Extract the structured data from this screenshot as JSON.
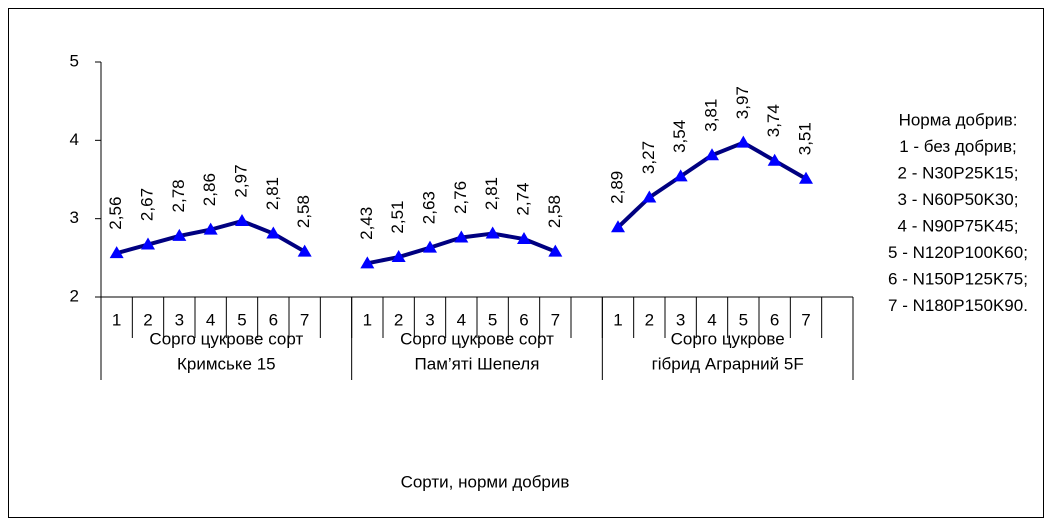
{
  "chart_data": {
    "type": "line",
    "x_title": "Сорти, норми добрив",
    "categories": [
      "1",
      "2",
      "3",
      "4",
      "5",
      "6",
      "7",
      null,
      "1",
      "2",
      "3",
      "4",
      "5",
      "6",
      "7",
      null,
      "1",
      "2",
      "3",
      "4",
      "5",
      "6",
      "7",
      null
    ],
    "groups": [
      [
        "Сорго цукрове сорт",
        "Кримське 15"
      ],
      [
        "Сорго цукрове сорт",
        "Пам’яті Шепеля"
      ],
      [
        "Сорго цукрове",
        "гібрид Аграрний 5F"
      ]
    ],
    "series": [
      {
        "line_color": "#000080",
        "color": "#0000ff",
        "values": [
          2.56,
          2.67,
          2.78,
          2.86,
          2.97,
          2.81,
          2.58,
          null,
          2.43,
          2.51,
          2.63,
          2.76,
          2.81,
          2.74,
          2.58,
          null,
          2.89,
          3.27,
          3.54,
          3.81,
          3.97,
          3.74,
          3.51,
          null
        ],
        "value_labels": [
          "2,56",
          "2,67",
          "2,78",
          "2,86",
          "2,97",
          "2,81",
          "2,58",
          null,
          "2,43",
          "2,51",
          "2,63",
          "2,76",
          "2,81",
          "2,74",
          "2,58",
          null,
          "2,89",
          "3,27",
          "3,54",
          "3,81",
          "3,97",
          "3,74",
          "3,51",
          null
        ]
      }
    ],
    "ylim": [
      2,
      5
    ],
    "yticks": [
      2,
      3,
      4,
      5
    ],
    "note": [
      "Норма добрив:",
      "1 - без добрив;",
      "2 - N30P25K15;",
      "3 - N60P50K30;",
      "4 - N90P75K45;",
      "5 - N120P100K60;",
      "6 - N150P125K75;",
      "7 - N180P150K90."
    ]
  }
}
